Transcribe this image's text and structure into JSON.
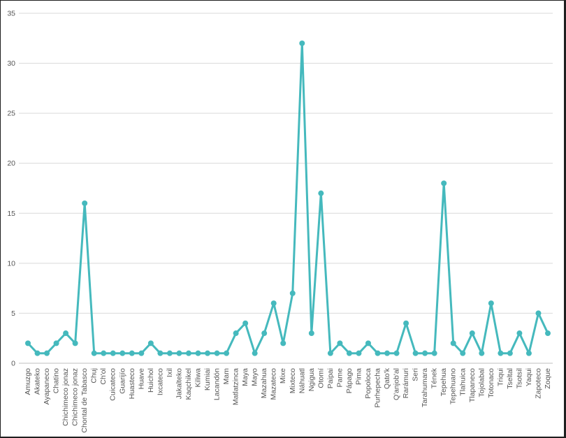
{
  "chart_data": {
    "type": "line",
    "title": "",
    "xlabel": "",
    "ylabel": "",
    "ylim": [
      0,
      35
    ],
    "yticks": [
      0,
      5,
      10,
      15,
      20,
      25,
      30,
      35
    ],
    "grid": true,
    "legend": "none",
    "line_color": "#45b9bd",
    "categories": [
      "Amuzgo",
      "Akateko",
      "Ayapaneco",
      "Chatino",
      "Chichimeco jonaz",
      "Chichimeco jonaz",
      "Chontal de Tabasco",
      "Chuj",
      "Ch'ol",
      "Cuicateco",
      "Guarijío",
      "Huasteco",
      "Huave",
      "Huichol",
      "Ixcateco",
      "Ixil",
      "Jakalteko",
      "Kaqchikel",
      "Kiliwa",
      "Kumiai",
      "Lacandón",
      "Mam",
      "Matlatzinca",
      "Maya",
      "Mayo",
      "Mazahua",
      "Mazateco",
      "Mixe",
      "Mixteco",
      "Náhuatl",
      "Ngigua",
      "Otomí",
      "Paipai",
      "Pame",
      "Pápago",
      "Pima",
      "Popoloca",
      "Purhepecha",
      "Qato'k",
      "Q'anjob'al",
      "Rarámuri",
      "Seri",
      "Tarahumara",
      "Tének",
      "Tepehua",
      "Tepehuano",
      "Tlahuica",
      "Tlapaneco",
      "Tojolabal",
      "Totonaco",
      "Triqui",
      "Tseltal",
      "Tsotsil",
      "Yaqui",
      "Zapoteco",
      "Zoque"
    ],
    "values": [
      2,
      1,
      1,
      2,
      3,
      2,
      16,
      1,
      1,
      1,
      1,
      1,
      1,
      2,
      1,
      1,
      1,
      1,
      1,
      1,
      1,
      1,
      3,
      4,
      1,
      3,
      6,
      2,
      7,
      32,
      3,
      17,
      1,
      2,
      1,
      1,
      2,
      1,
      1,
      1,
      4,
      1,
      1,
      1,
      18,
      2,
      1,
      3,
      1,
      6,
      1,
      1,
      3,
      1,
      5,
      3
    ]
  }
}
